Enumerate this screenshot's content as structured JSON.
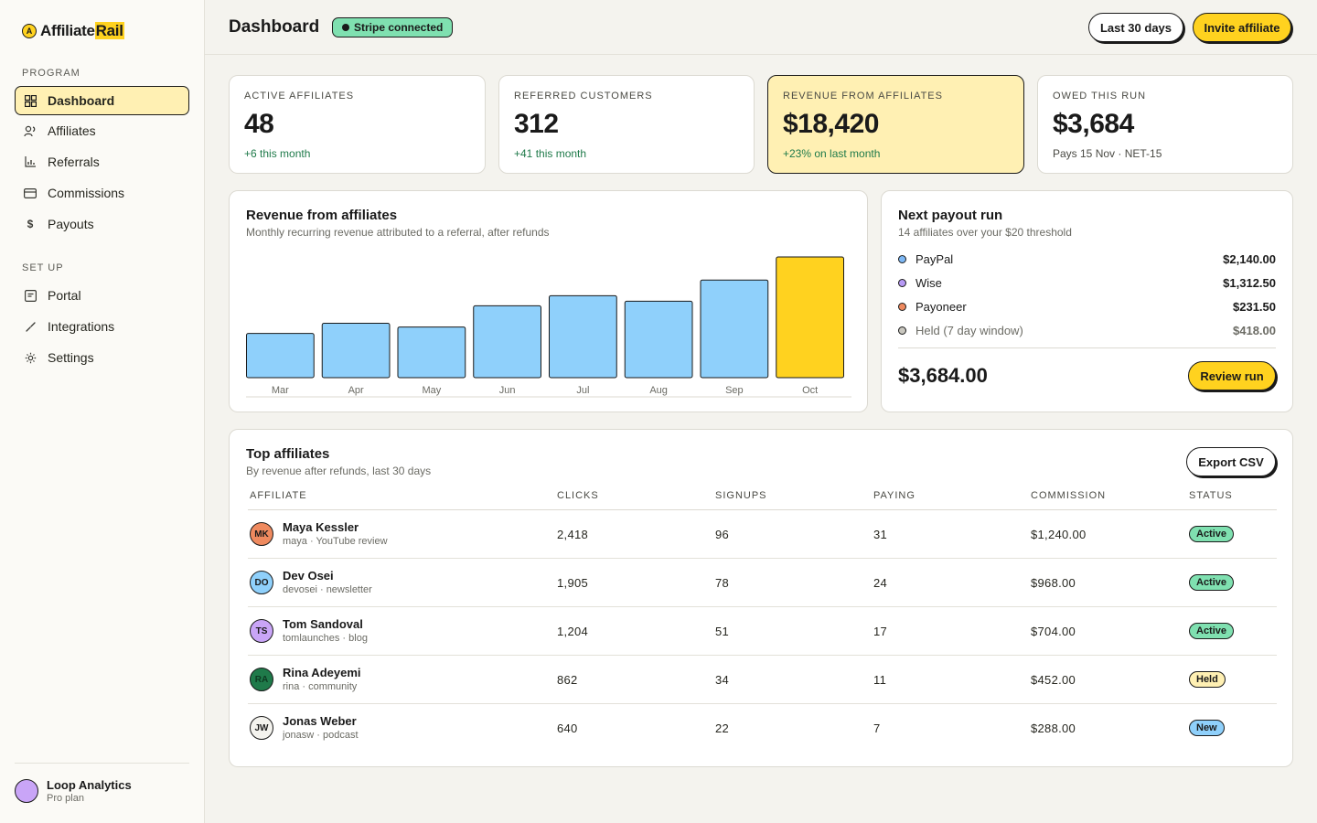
{
  "app": {
    "logo_letter": "A",
    "brand_prefix": "Affiliate",
    "brand_highlight": "Rail"
  },
  "sidebar": {
    "sections": [
      {
        "label": "PROGRAM"
      },
      {
        "label": "SET UP"
      }
    ],
    "items": [
      {
        "label": "Dashboard",
        "icon": "grid-icon",
        "active": true
      },
      {
        "label": "Affiliates",
        "icon": "users-icon"
      },
      {
        "label": "Referrals",
        "icon": "bar-chart-icon"
      },
      {
        "label": "Commissions",
        "icon": "card-icon"
      },
      {
        "label": "Payouts",
        "icon": "dollar-icon"
      },
      {
        "label": "Portal",
        "icon": "portal-icon"
      },
      {
        "label": "Integrations",
        "icon": "link-icon"
      },
      {
        "label": "Settings",
        "icon": "gear-icon"
      }
    ],
    "org": {
      "name": "Loop Analytics",
      "plan": "Pro plan",
      "avatar_color": "#c9a5f7"
    }
  },
  "header": {
    "title": "Dashboard",
    "stripe_badge": "Stripe connected",
    "range_button": "Last 30 days",
    "invite_button": "Invite affiliate"
  },
  "kpis": [
    {
      "label": "ACTIVE AFFILIATES",
      "value": "48",
      "delta": "+6 this month"
    },
    {
      "label": "REFERRED CUSTOMERS",
      "value": "312",
      "delta": "+41 this month"
    },
    {
      "label": "REVENUE FROM AFFILIATES",
      "value": "$18,420",
      "delta": "+23% on last month"
    },
    {
      "label": "OWED THIS RUN",
      "value": "$3,684",
      "delta": "Pays 15 Nov · NET-15"
    }
  ],
  "revenue_card": {
    "title": "Revenue from affiliates",
    "subtitle": "Monthly recurring revenue attributed to a referral, after refunds"
  },
  "chart_data": {
    "type": "bar",
    "title": "Revenue from affiliates",
    "categories": [
      "Mar",
      "Apr",
      "May",
      "Jun",
      "Jul",
      "Aug",
      "Sep",
      "Oct"
    ],
    "values": [
      48,
      59,
      55,
      78,
      89,
      83,
      106,
      131
    ],
    "highlight_index": 7,
    "colors": {
      "bar": "#8fd0fb",
      "highlight": "#ffd21f"
    },
    "ylim": [
      0,
      131
    ],
    "grid": false
  },
  "payout": {
    "title": "Next payout run",
    "subtitle": "14 affiliates over your $20 threshold",
    "rows": [
      {
        "name": "PayPal",
        "amount": "$2,140.00",
        "color": "#7eb8f5"
      },
      {
        "name": "Wise",
        "amount": "$1,312.50",
        "color": "#b79af5"
      },
      {
        "name": "Payoneer",
        "amount": "$231.50",
        "color": "#ef8a5f"
      },
      {
        "name": "Held (7 day window)",
        "amount": "$418.00",
        "color": "#c9c7bf"
      }
    ],
    "total": "$3,684.00",
    "review_button": "Review run"
  },
  "top_affiliates": {
    "title": "Top affiliates",
    "subtitle": "By revenue after refunds, last 30 days",
    "export_button": "Export CSV",
    "columns": [
      "AFFILIATE",
      "CLICKS",
      "SIGNUPS",
      "PAYING",
      "COMMISSION",
      "STATUS"
    ],
    "rows": [
      {
        "initials": "MK",
        "name": "Maya Kessler",
        "handle": "maya · YouTube review",
        "clicks": "2,418",
        "signups": "96",
        "paying": "31",
        "commission": "$1,240.00",
        "status": "Active",
        "avatar_color": "#ef8a5f",
        "status_color": "#7fe0b0"
      },
      {
        "initials": "DO",
        "name": "Dev Osei",
        "handle": "devosei · newsletter",
        "clicks": "1,905",
        "signups": "78",
        "paying": "24",
        "commission": "$968.00",
        "status": "Active",
        "avatar_color": "#8fd0fb",
        "status_color": "#7fe0b0"
      },
      {
        "initials": "TS",
        "name": "Tom Sandoval",
        "handle": "tomlaunches · blog",
        "clicks": "1,204",
        "signups": "51",
        "paying": "17",
        "commission": "$704.00",
        "status": "Active",
        "avatar_color": "#c9a5f7",
        "status_color": "#7fe0b0"
      },
      {
        "initials": "RA",
        "name": "Rina Adeyemi",
        "handle": "rina · community",
        "clicks": "862",
        "signups": "34",
        "paying": "11",
        "commission": "$452.00",
        "status": "Held",
        "avatar_color": "#1f7a4a",
        "status_color": "#fff0b3"
      },
      {
        "initials": "JW",
        "name": "Jonas Weber",
        "handle": "jonasw · podcast",
        "clicks": "640",
        "signups": "22",
        "paying": "7",
        "commission": "$288.00",
        "status": "New",
        "avatar_color": "#f4f3ee",
        "status_color": "#8fd0fb"
      }
    ]
  }
}
